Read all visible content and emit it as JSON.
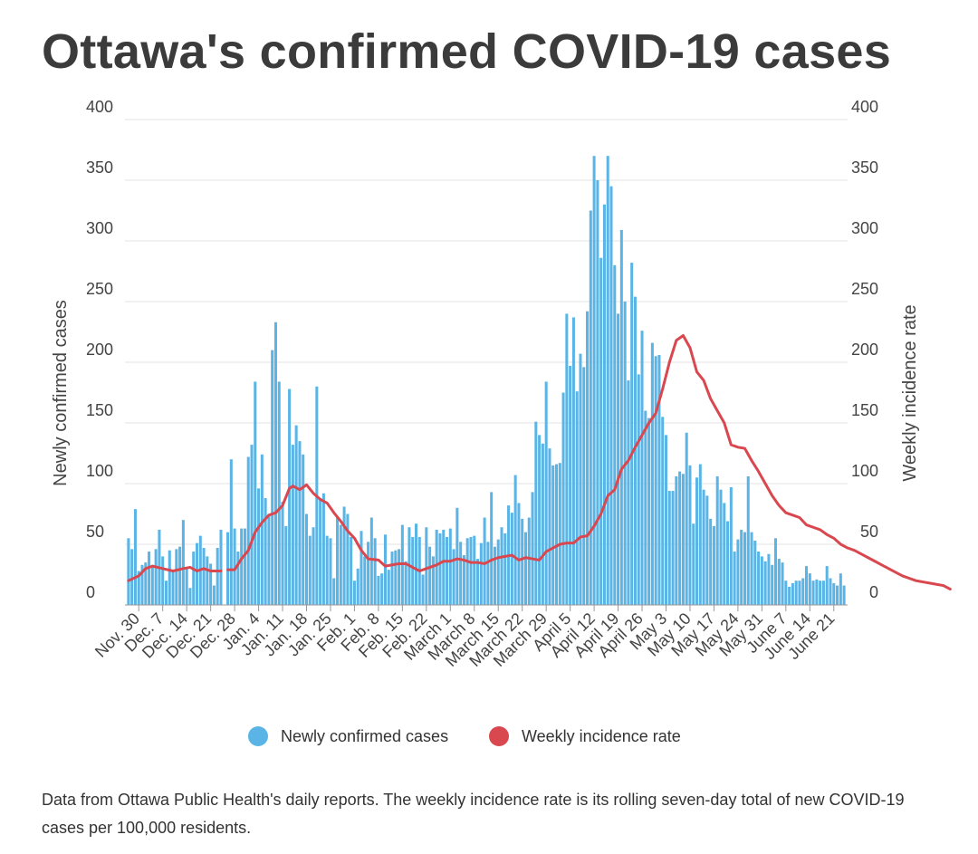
{
  "chart_data": {
    "type": "bar+line",
    "title": "Ottawa's confirmed COVID-19 cases",
    "ylabel_left": "Newly confirmed cases",
    "ylabel_right": "Weekly incidence rate",
    "ylim": [
      0,
      400
    ],
    "yticks": [
      0,
      50,
      100,
      150,
      200,
      250,
      300,
      350,
      400
    ],
    "grid": true,
    "legend_position": "bottom",
    "x_start": "2020-11-27",
    "x_tick_labels": [
      "Nov. 30",
      "Dec. 7",
      "Dec. 14",
      "Dec. 21",
      "Dec. 28",
      "Jan. 4",
      "Jan. 11",
      "Jan. 18",
      "Jan. 25",
      "Feb. 1",
      "Feb. 8",
      "Feb. 15",
      "Feb. 22",
      "March 1",
      "March 8",
      "March 15",
      "March 22",
      "March 29",
      "April 5",
      "April 12",
      "April 19",
      "April 26",
      "May 3",
      "May 10",
      "May 17",
      "May 24",
      "May 31",
      "June 7",
      "June 14",
      "June 21"
    ],
    "series": [
      {
        "name": "Newly confirmed cases",
        "type": "bar",
        "color": "#5ab4e5",
        "values": [
          55,
          46,
          79,
          28,
          33,
          35,
          44,
          33,
          46,
          62,
          40,
          20,
          45,
          29,
          46,
          48,
          70,
          30,
          14,
          44,
          51,
          57,
          47,
          40,
          34,
          16,
          47,
          62,
          0,
          60,
          120,
          63,
          44,
          63,
          63,
          122,
          132,
          184,
          96,
          124,
          88,
          75,
          210,
          233,
          184,
          85,
          65,
          178,
          132,
          148,
          135,
          124,
          75,
          57,
          64,
          180,
          88,
          92,
          57,
          55,
          22,
          72,
          66,
          81,
          75,
          56,
          20,
          30,
          61,
          40,
          52,
          72,
          55,
          24,
          26,
          58,
          29,
          44,
          45,
          46,
          66,
          36,
          64,
          56,
          67,
          56,
          25,
          64,
          48,
          40,
          62,
          59,
          62,
          56,
          63,
          46,
          80,
          52,
          41,
          55,
          56,
          57,
          38,
          51,
          72,
          52,
          93,
          48,
          54,
          64,
          59,
          82,
          76,
          107,
          84,
          71,
          60,
          72,
          93,
          151,
          140,
          133,
          184,
          129,
          115,
          116,
          117,
          175,
          240,
          197,
          237,
          176,
          207,
          196,
          242,
          325,
          370,
          350,
          286,
          330,
          370,
          345,
          280,
          240,
          309,
          250,
          185,
          282,
          254,
          190,
          226,
          160,
          154,
          216,
          205,
          206,
          155,
          140,
          94,
          94,
          106,
          110,
          108,
          142,
          115,
          67,
          105,
          116,
          95,
          90,
          71,
          65,
          106,
          95,
          84,
          69,
          97,
          44,
          54,
          62,
          60,
          106,
          60,
          53,
          44,
          40,
          36,
          42,
          33,
          55,
          38,
          35,
          20,
          15,
          18,
          20,
          20,
          22,
          32,
          26,
          20,
          21,
          20,
          20,
          32,
          22,
          18,
          16,
          26,
          16
        ]
      },
      {
        "name": "Weekly incidence rate",
        "type": "line",
        "color": "#d9474f",
        "points": [
          [
            0,
            20
          ],
          [
            3,
            24
          ],
          [
            5,
            30
          ],
          [
            7,
            32
          ],
          [
            10,
            30
          ],
          [
            13,
            28
          ],
          [
            16,
            30
          ],
          [
            18,
            31
          ],
          [
            20,
            28
          ],
          [
            22,
            30
          ],
          [
            24,
            28
          ],
          [
            27,
            28
          ],
          [
            28,
            null
          ],
          [
            29,
            29
          ],
          [
            31,
            29
          ],
          [
            33,
            38
          ],
          [
            35,
            45
          ],
          [
            37,
            60
          ],
          [
            39,
            68
          ],
          [
            41,
            74
          ],
          [
            43,
            76
          ],
          [
            45,
            82
          ],
          [
            47,
            96
          ],
          [
            48,
            98
          ],
          [
            50,
            95
          ],
          [
            52,
            99
          ],
          [
            54,
            92
          ],
          [
            56,
            87
          ],
          [
            58,
            84
          ],
          [
            60,
            76
          ],
          [
            62,
            69
          ],
          [
            64,
            61
          ],
          [
            66,
            55
          ],
          [
            68,
            45
          ],
          [
            70,
            38
          ],
          [
            73,
            37
          ],
          [
            75,
            32
          ],
          [
            77,
            33
          ],
          [
            79,
            34
          ],
          [
            81,
            34
          ],
          [
            83,
            31
          ],
          [
            85,
            28
          ],
          [
            87,
            30
          ],
          [
            90,
            33
          ],
          [
            92,
            36
          ],
          [
            94,
            36
          ],
          [
            96,
            38
          ],
          [
            98,
            37
          ],
          [
            100,
            35
          ],
          [
            102,
            35
          ],
          [
            104,
            34
          ],
          [
            106,
            37
          ],
          [
            108,
            39
          ],
          [
            110,
            40
          ],
          [
            112,
            41
          ],
          [
            114,
            37
          ],
          [
            116,
            39
          ],
          [
            118,
            38
          ],
          [
            120,
            37
          ],
          [
            122,
            44
          ],
          [
            124,
            47
          ],
          [
            126,
            50
          ],
          [
            128,
            51
          ],
          [
            130,
            51
          ],
          [
            132,
            56
          ],
          [
            134,
            57
          ],
          [
            136,
            65
          ],
          [
            138,
            75
          ],
          [
            140,
            90
          ],
          [
            142,
            95
          ],
          [
            144,
            112
          ],
          [
            146,
            119
          ],
          [
            148,
            130
          ],
          [
            150,
            140
          ],
          [
            152,
            150
          ],
          [
            154,
            158
          ],
          [
            156,
            178
          ],
          [
            158,
            200
          ],
          [
            160,
            218
          ],
          [
            162,
            222
          ],
          [
            164,
            212
          ],
          [
            166,
            192
          ],
          [
            168,
            185
          ],
          [
            170,
            170
          ],
          [
            172,
            160
          ],
          [
            174,
            150
          ],
          [
            176,
            132
          ],
          [
            178,
            130
          ],
          [
            180,
            129
          ],
          [
            182,
            119
          ],
          [
            184,
            110
          ],
          [
            186,
            100
          ],
          [
            188,
            90
          ],
          [
            190,
            82
          ],
          [
            192,
            76
          ],
          [
            194,
            74
          ],
          [
            196,
            72
          ],
          [
            198,
            66
          ],
          [
            200,
            64
          ],
          [
            202,
            62
          ],
          [
            204,
            58
          ],
          [
            206,
            55
          ],
          [
            208,
            50
          ],
          [
            210,
            47
          ],
          [
            212,
            45
          ],
          [
            214,
            42
          ],
          [
            216,
            39
          ],
          [
            218,
            36
          ],
          [
            220,
            33
          ],
          [
            222,
            30
          ],
          [
            224,
            27
          ],
          [
            226,
            24
          ],
          [
            228,
            22
          ],
          [
            230,
            20
          ],
          [
            232,
            19
          ],
          [
            234,
            18
          ],
          [
            236,
            17
          ],
          [
            238,
            16
          ],
          [
            240,
            13
          ]
        ]
      }
    ]
  },
  "footer": {
    "source_note": "Data from Ottawa Public Health's daily reports. The weekly incidence rate is its rolling seven-day total of new COVID-19 cases per 100,000 residents."
  }
}
